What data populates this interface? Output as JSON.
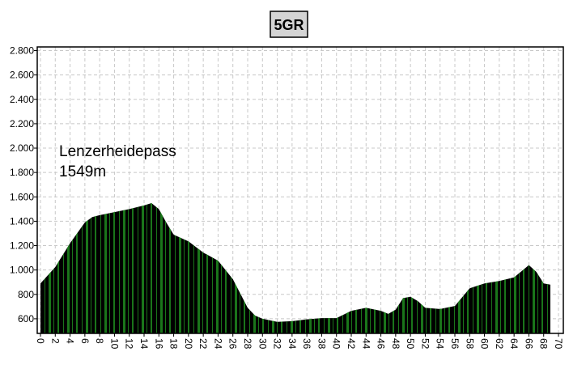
{
  "chart_data": {
    "type": "area",
    "title": "5GR",
    "annotation": [
      "Lenzerheidepass",
      "1549m"
    ],
    "x": [
      0,
      2,
      4,
      6,
      7,
      8,
      10,
      12,
      14,
      15,
      16,
      17,
      18,
      20,
      22,
      24,
      26,
      28,
      29,
      30,
      32,
      34,
      36,
      38,
      40,
      42,
      44,
      46,
      47,
      48,
      49,
      50,
      51,
      52,
      54,
      56,
      58,
      60,
      62,
      64,
      66,
      67,
      68,
      68.9
    ],
    "values": [
      890,
      1024,
      1220,
      1390,
      1434,
      1450,
      1475,
      1500,
      1530,
      1549,
      1500,
      1390,
      1290,
      1235,
      1143,
      1077,
      925,
      690,
      626,
      600,
      575,
      580,
      595,
      605,
      605,
      665,
      690,
      665,
      640,
      675,
      770,
      780,
      745,
      690,
      680,
      705,
      850,
      890,
      910,
      940,
      1040,
      985,
      890,
      880
    ],
    "color": "#000000",
    "stripe_color": "#1e8a1e",
    "xlim": [
      0,
      70
    ],
    "xticks": [
      0,
      2,
      4,
      6,
      8,
      10,
      12,
      14,
      16,
      18,
      20,
      22,
      24,
      26,
      28,
      30,
      32,
      34,
      36,
      38,
      40,
      42,
      44,
      46,
      48,
      50,
      52,
      54,
      56,
      58,
      60,
      62,
      64,
      66,
      68,
      70
    ],
    "ylim": [
      480,
      2830
    ],
    "yticks": [
      {
        "value": 600,
        "label": "600"
      },
      {
        "value": 800,
        "label": "800"
      },
      {
        "value": 1000,
        "label": "1.000"
      },
      {
        "value": 1200,
        "label": "1.200"
      },
      {
        "value": 1400,
        "label": "1.400"
      },
      {
        "value": 1600,
        "label": "1.600"
      },
      {
        "value": 1800,
        "label": "1.800"
      },
      {
        "value": 2000,
        "label": "2.000"
      },
      {
        "value": 2200,
        "label": "2.200"
      },
      {
        "value": 2400,
        "label": "2.400"
      },
      {
        "value": 2600,
        "label": "2.600"
      },
      {
        "value": 2800,
        "label": "2.800"
      }
    ],
    "grid": true
  }
}
